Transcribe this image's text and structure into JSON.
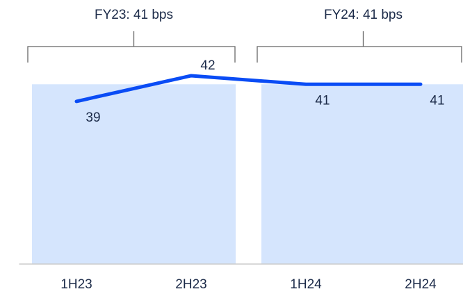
{
  "chart_data": {
    "type": "line",
    "categories": [
      "1H23",
      "2H23",
      "1H24",
      "2H24"
    ],
    "series": [
      {
        "color": "#0a4cf5",
        "values": [
          39,
          42,
          41,
          41
        ]
      }
    ],
    "groups": [
      {
        "label": "FY23: 41 bps",
        "value": 41,
        "span": [
          0,
          1
        ]
      },
      {
        "label": "FY24: 41 bps",
        "value": 41,
        "span": [
          2,
          3
        ]
      }
    ],
    "group_color": "#d5e5fd",
    "ylim": [
      20,
      45
    ]
  }
}
